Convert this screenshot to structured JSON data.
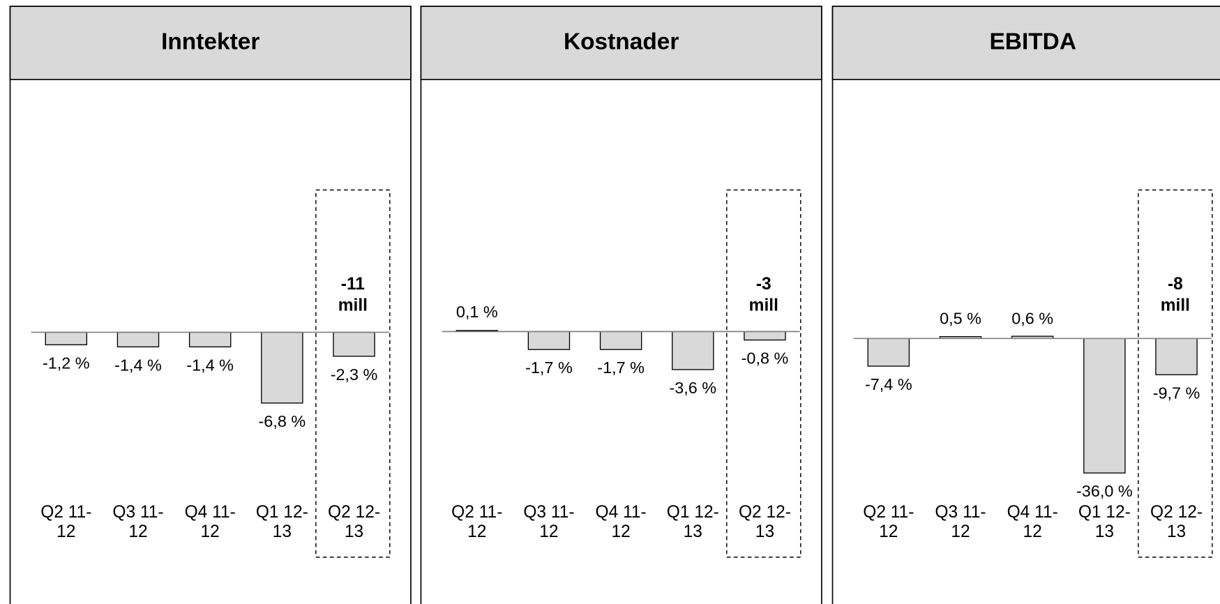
{
  "chart_data": [
    {
      "type": "bar",
      "title": "Inntekter",
      "categories": [
        "Q2 11-12",
        "Q3 11-12",
        "Q4 11-12",
        "Q1 12-13",
        "Q2 12-13"
      ],
      "values": [
        -1.2,
        -1.4,
        -1.4,
        -6.8,
        -2.3
      ],
      "value_labels": [
        "-1,2 %",
        "-1,4 %",
        "-1,4 %",
        "-6,8 %",
        "-2,3 %"
      ],
      "annotation": "-11 mill",
      "color": "#d9d9d9",
      "ylim": [
        -24.9,
        22.2
      ]
    },
    {
      "type": "bar",
      "title": "Kostnader",
      "categories": [
        "Q2 11-12",
        "Q3 11-12",
        "Q4 11-12",
        "Q1 12-13",
        "Q2 12-13"
      ],
      "values": [
        0.1,
        -1.7,
        -1.7,
        -3.6,
        -0.8
      ],
      "value_labels": [
        "0,1 %",
        "-1,7 %",
        "-1,7 %",
        "-3,6 %",
        "-0,8 %"
      ],
      "annotation": "-3 mill",
      "color": "#d9d9d9",
      "ylim": [
        -24.6,
        21.8
      ]
    },
    {
      "type": "bar",
      "title": "EBITDA",
      "categories": [
        "Q2 11-12",
        "Q3 11-12",
        "Q4 11-12",
        "Q1 12-13",
        "Q2 12-13"
      ],
      "values": [
        -7.4,
        0.5,
        0.6,
        -36.0,
        -9.7
      ],
      "value_labels": [
        "-7,4 %",
        "0,5 %",
        "0,6 %",
        "-36,0 %",
        "-9,7 %"
      ],
      "annotation": "-8 mill",
      "color": "#d9d9d9",
      "ylim": [
        -67.7,
        63.5
      ]
    }
  ]
}
